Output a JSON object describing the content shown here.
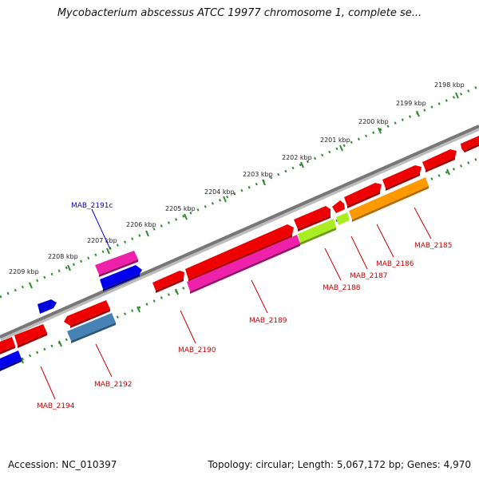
{
  "title": "Mycobacterium abscessus ATCC 19977 chromosome 1, complete se...",
  "footer": {
    "accession": "Accession: NC_010397",
    "summary": "Topology: circular; Length: 5,067,172 bp; Genes: 4,970"
  },
  "colors": {
    "backbone": "#7a7a7a",
    "tick_dots": "#2e8b2e",
    "label_red": "#cc0000",
    "label_blue": "#0000cc"
  },
  "kbp_ticks": [
    "2198 kbp",
    "2199 kbp",
    "2200 kbp",
    "2201 kbp",
    "2202 kbp",
    "2203 kbp",
    "2204 kbp",
    "2205 kbp",
    "2206 kbp",
    "2207 kbp",
    "2208 kbp",
    "2209 kbp"
  ],
  "gene_labels": [
    "MAB_2191c",
    "MAB_2185",
    "MAB_2186",
    "MAB_2187",
    "MAB_2188",
    "MAB_2189",
    "MAB_2190",
    "MAB_2192",
    "MAB_2194"
  ]
}
